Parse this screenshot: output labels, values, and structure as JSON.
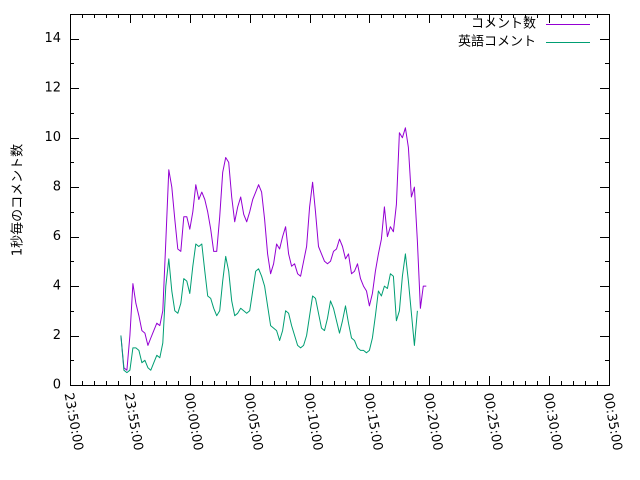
{
  "chart_data": {
    "type": "line",
    "title": "",
    "xlabel": "",
    "ylabel": "1秒毎のコメント数",
    "ylim": [
      0,
      15
    ],
    "yticks": [
      0,
      2,
      4,
      6,
      8,
      10,
      12,
      14
    ],
    "xlim": [
      "23:50:00",
      "00:35:00"
    ],
    "xticks": [
      "23:50:00",
      "23:55:00",
      "00:00:00",
      "00:05:00",
      "00:10:00",
      "00:15:00",
      "00:20:00",
      "00:25:00",
      "00:30:00",
      "00:35:00"
    ],
    "grid": false,
    "legend_position": "top-right",
    "x_tick_label_rotation_deg": 80,
    "series": [
      {
        "name": "コメント数",
        "color": "#9400d3",
        "points": [
          [
            "23:54:15",
            2.0
          ],
          [
            "23:54:30",
            0.7
          ],
          [
            "23:54:45",
            0.6
          ],
          [
            "23:55:00",
            2.0
          ],
          [
            "23:55:15",
            4.1
          ],
          [
            "23:55:30",
            3.3
          ],
          [
            "23:55:45",
            2.8
          ],
          [
            "23:56:00",
            2.2
          ],
          [
            "23:56:15",
            2.1
          ],
          [
            "23:56:30",
            1.6
          ],
          [
            "23:56:45",
            1.9
          ],
          [
            "23:57:00",
            2.2
          ],
          [
            "23:57:15",
            2.5
          ],
          [
            "23:57:30",
            2.4
          ],
          [
            "23:57:45",
            3.0
          ],
          [
            "23:58:00",
            5.8
          ],
          [
            "23:58:15",
            8.7
          ],
          [
            "23:58:30",
            8.0
          ],
          [
            "23:58:45",
            6.7
          ],
          [
            "23:59:00",
            5.5
          ],
          [
            "23:59:15",
            5.4
          ],
          [
            "23:59:30",
            6.8
          ],
          [
            "23:59:45",
            6.8
          ],
          [
            "00:00:00",
            6.3
          ],
          [
            "00:00:15",
            7.0
          ],
          [
            "00:00:30",
            8.1
          ],
          [
            "00:00:45",
            7.5
          ],
          [
            "00:01:00",
            7.8
          ],
          [
            "00:01:15",
            7.5
          ],
          [
            "00:01:30",
            7.0
          ],
          [
            "00:01:45",
            6.3
          ],
          [
            "00:02:00",
            5.4
          ],
          [
            "00:02:15",
            5.4
          ],
          [
            "00:02:30",
            6.8
          ],
          [
            "00:02:45",
            8.6
          ],
          [
            "00:03:00",
            9.2
          ],
          [
            "00:03:15",
            9.0
          ],
          [
            "00:03:30",
            7.6
          ],
          [
            "00:03:45",
            6.6
          ],
          [
            "00:04:00",
            7.2
          ],
          [
            "00:04:15",
            7.6
          ],
          [
            "00:04:30",
            6.9
          ],
          [
            "00:04:45",
            6.6
          ],
          [
            "00:05:00",
            7.0
          ],
          [
            "00:05:15",
            7.5
          ],
          [
            "00:05:30",
            7.8
          ],
          [
            "00:05:45",
            8.1
          ],
          [
            "00:06:00",
            7.8
          ],
          [
            "00:06:15",
            6.7
          ],
          [
            "00:06:30",
            5.3
          ],
          [
            "00:06:45",
            4.5
          ],
          [
            "00:07:00",
            4.9
          ],
          [
            "00:07:15",
            5.7
          ],
          [
            "00:07:30",
            5.5
          ],
          [
            "00:07:45",
            6.0
          ],
          [
            "00:08:00",
            6.4
          ],
          [
            "00:08:15",
            5.3
          ],
          [
            "00:08:30",
            4.8
          ],
          [
            "00:08:45",
            4.9
          ],
          [
            "00:09:00",
            4.5
          ],
          [
            "00:09:15",
            4.4
          ],
          [
            "00:09:30",
            5.0
          ],
          [
            "00:09:45",
            5.6
          ],
          [
            "00:10:00",
            7.2
          ],
          [
            "00:10:15",
            8.2
          ],
          [
            "00:10:30",
            7.0
          ],
          [
            "00:10:45",
            5.6
          ],
          [
            "00:11:00",
            5.3
          ],
          [
            "00:11:15",
            5.0
          ],
          [
            "00:11:30",
            4.9
          ],
          [
            "00:11:45",
            5.0
          ],
          [
            "00:12:00",
            5.4
          ],
          [
            "00:12:15",
            5.5
          ],
          [
            "00:12:30",
            5.9
          ],
          [
            "00:12:45",
            5.6
          ],
          [
            "00:13:00",
            5.1
          ],
          [
            "00:13:15",
            5.3
          ],
          [
            "00:13:30",
            4.5
          ],
          [
            "00:13:45",
            4.6
          ],
          [
            "00:14:00",
            4.9
          ],
          [
            "00:14:15",
            4.3
          ],
          [
            "00:14:30",
            4.0
          ],
          [
            "00:14:45",
            3.8
          ],
          [
            "00:15:00",
            3.2
          ],
          [
            "00:15:15",
            3.7
          ],
          [
            "00:15:30",
            4.6
          ],
          [
            "00:15:45",
            5.3
          ],
          [
            "00:16:00",
            5.9
          ],
          [
            "00:16:15",
            7.2
          ],
          [
            "00:16:30",
            6.0
          ],
          [
            "00:16:45",
            6.4
          ],
          [
            "00:17:00",
            6.2
          ],
          [
            "00:17:15",
            7.3
          ],
          [
            "00:17:30",
            10.2
          ],
          [
            "00:17:45",
            10.0
          ],
          [
            "00:18:00",
            10.4
          ],
          [
            "00:18:15",
            9.6
          ],
          [
            "00:18:30",
            7.6
          ],
          [
            "00:18:45",
            8.0
          ],
          [
            "00:19:00",
            5.8
          ],
          [
            "00:19:15",
            3.1
          ],
          [
            "00:19:30",
            4.0
          ],
          [
            "00:19:45",
            4.0
          ]
        ]
      },
      {
        "name": "英語コメント",
        "color": "#009e73",
        "points": [
          [
            "23:54:15",
            2.0
          ],
          [
            "23:54:30",
            0.6
          ],
          [
            "23:54:45",
            0.5
          ],
          [
            "23:55:00",
            0.6
          ],
          [
            "23:55:15",
            1.5
          ],
          [
            "23:55:30",
            1.5
          ],
          [
            "23:55:45",
            1.4
          ],
          [
            "23:56:00",
            0.9
          ],
          [
            "23:56:15",
            1.0
          ],
          [
            "23:56:30",
            0.7
          ],
          [
            "23:56:45",
            0.6
          ],
          [
            "23:57:00",
            0.9
          ],
          [
            "23:57:15",
            1.2
          ],
          [
            "23:57:30",
            1.1
          ],
          [
            "23:57:45",
            1.7
          ],
          [
            "23:58:00",
            4.0
          ],
          [
            "23:58:15",
            5.1
          ],
          [
            "23:58:30",
            3.8
          ],
          [
            "23:58:45",
            3.0
          ],
          [
            "23:59:00",
            2.9
          ],
          [
            "23:59:15",
            3.3
          ],
          [
            "23:59:30",
            4.3
          ],
          [
            "23:59:45",
            4.2
          ],
          [
            "00:00:00",
            3.7
          ],
          [
            "00:00:15",
            4.8
          ],
          [
            "00:00:30",
            5.7
          ],
          [
            "00:00:45",
            5.6
          ],
          [
            "00:01:00",
            5.7
          ],
          [
            "00:01:15",
            4.6
          ],
          [
            "00:01:30",
            3.6
          ],
          [
            "00:01:45",
            3.5
          ],
          [
            "00:02:00",
            3.1
          ],
          [
            "00:02:15",
            2.8
          ],
          [
            "00:02:30",
            3.0
          ],
          [
            "00:02:45",
            4.2
          ],
          [
            "00:03:00",
            5.2
          ],
          [
            "00:03:15",
            4.6
          ],
          [
            "00:03:30",
            3.4
          ],
          [
            "00:03:45",
            2.8
          ],
          [
            "00:04:00",
            2.9
          ],
          [
            "00:04:15",
            3.1
          ],
          [
            "00:04:30",
            3.0
          ],
          [
            "00:04:45",
            2.9
          ],
          [
            "00:05:00",
            3.0
          ],
          [
            "00:05:15",
            3.8
          ],
          [
            "00:05:30",
            4.6
          ],
          [
            "00:05:45",
            4.7
          ],
          [
            "00:06:00",
            4.4
          ],
          [
            "00:06:15",
            4.0
          ],
          [
            "00:06:30",
            3.2
          ],
          [
            "00:06:45",
            2.4
          ],
          [
            "00:07:00",
            2.3
          ],
          [
            "00:07:15",
            2.2
          ],
          [
            "00:07:30",
            1.8
          ],
          [
            "00:07:45",
            2.2
          ],
          [
            "00:08:00",
            3.0
          ],
          [
            "00:08:15",
            2.9
          ],
          [
            "00:08:30",
            2.4
          ],
          [
            "00:08:45",
            2.0
          ],
          [
            "00:09:00",
            1.6
          ],
          [
            "00:09:15",
            1.5
          ],
          [
            "00:09:30",
            1.6
          ],
          [
            "00:09:45",
            2.0
          ],
          [
            "00:10:00",
            2.8
          ],
          [
            "00:10:15",
            3.6
          ],
          [
            "00:10:30",
            3.5
          ],
          [
            "00:10:45",
            2.9
          ],
          [
            "00:11:00",
            2.3
          ],
          [
            "00:11:15",
            2.2
          ],
          [
            "00:11:30",
            2.7
          ],
          [
            "00:11:45",
            3.4
          ],
          [
            "00:12:00",
            3.1
          ],
          [
            "00:12:15",
            2.6
          ],
          [
            "00:12:30",
            2.1
          ],
          [
            "00:12:45",
            2.6
          ],
          [
            "00:13:00",
            3.2
          ],
          [
            "00:13:15",
            2.5
          ],
          [
            "00:13:30",
            1.9
          ],
          [
            "00:13:45",
            1.8
          ],
          [
            "00:14:00",
            1.5
          ],
          [
            "00:14:15",
            1.4
          ],
          [
            "00:14:30",
            1.4
          ],
          [
            "00:14:45",
            1.3
          ],
          [
            "00:15:00",
            1.4
          ],
          [
            "00:15:15",
            1.9
          ],
          [
            "00:15:30",
            2.8
          ],
          [
            "00:15:45",
            3.8
          ],
          [
            "00:16:00",
            3.6
          ],
          [
            "00:16:15",
            4.0
          ],
          [
            "00:16:30",
            3.9
          ],
          [
            "00:16:45",
            4.5
          ],
          [
            "00:17:00",
            4.4
          ],
          [
            "00:17:15",
            2.6
          ],
          [
            "00:17:30",
            3.0
          ],
          [
            "00:17:45",
            4.4
          ],
          [
            "00:18:00",
            5.3
          ],
          [
            "00:18:15",
            4.2
          ],
          [
            "00:18:30",
            2.9
          ],
          [
            "00:18:45",
            1.6
          ],
          [
            "00:19:00",
            3.0
          ]
        ]
      }
    ]
  }
}
